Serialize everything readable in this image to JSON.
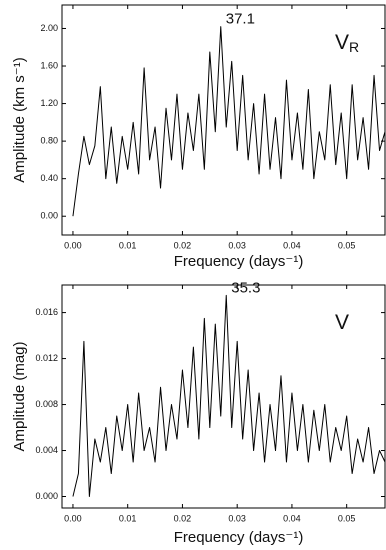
{
  "chart_data": [
    {
      "type": "line",
      "x": [
        0,
        0.001,
        0.002,
        0.003,
        0.004,
        0.005,
        0.006,
        0.007,
        0.008,
        0.009,
        0.01,
        0.011,
        0.012,
        0.013,
        0.014,
        0.015,
        0.016,
        0.017,
        0.018,
        0.019,
        0.02,
        0.021,
        0.022,
        0.023,
        0.024,
        0.025,
        0.026,
        0.027,
        0.028,
        0.029,
        0.03,
        0.031,
        0.032,
        0.033,
        0.034,
        0.035,
        0.036,
        0.037,
        0.038,
        0.039,
        0.04,
        0.041,
        0.042,
        0.043,
        0.044,
        0.045,
        0.046,
        0.047,
        0.048,
        0.049,
        0.05,
        0.051,
        0.052,
        0.053,
        0.054,
        0.055,
        0.056,
        0.057
      ],
      "series": [
        {
          "color": "#000000",
          "values": [
            0.0,
            0.45,
            0.85,
            0.55,
            0.75,
            1.38,
            0.4,
            0.95,
            0.35,
            0.85,
            0.5,
            1.0,
            0.45,
            1.58,
            0.6,
            0.95,
            0.3,
            1.15,
            0.6,
            1.3,
            0.5,
            1.1,
            0.7,
            1.3,
            0.5,
            1.75,
            0.9,
            2.02,
            0.95,
            1.65,
            0.7,
            1.5,
            0.6,
            1.2,
            0.45,
            1.3,
            0.5,
            1.05,
            0.4,
            1.45,
            0.6,
            1.1,
            0.5,
            1.35,
            0.4,
            0.9,
            0.6,
            1.4,
            0.55,
            1.1,
            0.4,
            1.4,
            0.6,
            1.05,
            0.5,
            1.5,
            0.7,
            0.9
          ]
        }
      ],
      "xlim": [
        -0.002,
        0.057
      ],
      "ylim": [
        -0.2,
        2.25
      ],
      "xticks": [
        {
          "value": 0,
          "label": "0.00"
        },
        {
          "value": 0.01,
          "label": "0.01"
        },
        {
          "value": 0.02,
          "label": "0.02"
        },
        {
          "value": 0.03,
          "label": "0.03"
        },
        {
          "value": 0.04,
          "label": "0.04"
        },
        {
          "value": 0.05,
          "label": "0.05"
        }
      ],
      "yticks": [
        {
          "value": 0,
          "label": "0.00"
        },
        {
          "value": 0.4,
          "label": "0.40"
        },
        {
          "value": 0.8,
          "label": "0.80"
        },
        {
          "value": 1.2,
          "label": "1.20"
        },
        {
          "value": 1.6,
          "label": "1.60"
        },
        {
          "value": 2.0,
          "label": "2.00"
        }
      ],
      "x_label": "Frequency (days⁻¹)",
      "y_label": "Amplitude (km s⁻¹)",
      "peak_label": "37.1",
      "panel_label": "V",
      "panel_label_sub": "R"
    },
    {
      "type": "line",
      "x": [
        0,
        0.001,
        0.002,
        0.003,
        0.004,
        0.005,
        0.006,
        0.007,
        0.008,
        0.009,
        0.01,
        0.011,
        0.012,
        0.013,
        0.014,
        0.015,
        0.016,
        0.017,
        0.018,
        0.019,
        0.02,
        0.021,
        0.022,
        0.023,
        0.024,
        0.025,
        0.026,
        0.027,
        0.028,
        0.029,
        0.03,
        0.031,
        0.032,
        0.033,
        0.034,
        0.035,
        0.036,
        0.037,
        0.038,
        0.039,
        0.04,
        0.041,
        0.042,
        0.043,
        0.044,
        0.045,
        0.046,
        0.047,
        0.048,
        0.049,
        0.05,
        0.051,
        0.052,
        0.053,
        0.054,
        0.055,
        0.056,
        0.057
      ],
      "series": [
        {
          "color": "#000000",
          "values": [
            0.0,
            0.002,
            0.0135,
            0.0,
            0.005,
            0.003,
            0.006,
            0.002,
            0.007,
            0.004,
            0.008,
            0.003,
            0.009,
            0.004,
            0.006,
            0.003,
            0.0095,
            0.004,
            0.008,
            0.005,
            0.011,
            0.006,
            0.013,
            0.005,
            0.0155,
            0.006,
            0.015,
            0.007,
            0.0175,
            0.006,
            0.0135,
            0.005,
            0.011,
            0.004,
            0.009,
            0.003,
            0.008,
            0.004,
            0.0105,
            0.003,
            0.009,
            0.004,
            0.008,
            0.003,
            0.0075,
            0.004,
            0.008,
            0.003,
            0.006,
            0.004,
            0.007,
            0.002,
            0.005,
            0.003,
            0.006,
            0.002,
            0.004,
            0.003
          ]
        }
      ],
      "xlim": [
        -0.002,
        0.057
      ],
      "ylim": [
        -0.001,
        0.0184
      ],
      "xticks": [
        {
          "value": 0,
          "label": "0.00"
        },
        {
          "value": 0.01,
          "label": "0.01"
        },
        {
          "value": 0.02,
          "label": "0.02"
        },
        {
          "value": 0.03,
          "label": "0.03"
        },
        {
          "value": 0.04,
          "label": "0.04"
        },
        {
          "value": 0.05,
          "label": "0.05"
        }
      ],
      "yticks": [
        {
          "value": 0,
          "label": "0.000"
        },
        {
          "value": 0.004,
          "label": "0.004"
        },
        {
          "value": 0.008,
          "label": "0.008"
        },
        {
          "value": 0.012,
          "label": "0.012"
        },
        {
          "value": 0.016,
          "label": "0.016"
        }
      ],
      "x_label": "Frequency (days⁻¹)",
      "y_label": "Amplitude (mag)",
      "peak_label": "35.3",
      "panel_label": "V"
    }
  ]
}
